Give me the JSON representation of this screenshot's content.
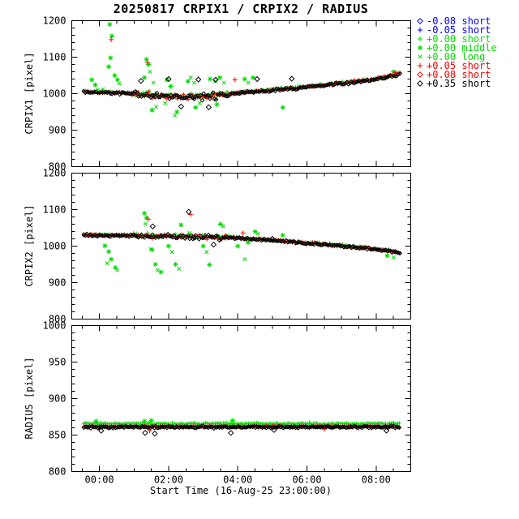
{
  "title": "20250817 CRPIX1 / CRPIX2 / RADIUS",
  "xlabel": "Start Time (16-Aug-25 23:00:00)",
  "colors": {
    "black": "#000000",
    "blue": "#0000ff",
    "green": "#00dd00",
    "red": "#ff0000"
  },
  "x_axis": {
    "range": [
      0.2,
      10.0
    ],
    "unit": "hours since 23:00",
    "major_ticks": [
      {
        "value": 1,
        "label": "00:00"
      },
      {
        "value": 3,
        "label": "02:00"
      },
      {
        "value": 5,
        "label": "04:00"
      },
      {
        "value": 7,
        "label": "06:00"
      },
      {
        "value": 9,
        "label": "08:00"
      }
    ],
    "minor_step": 0.5
  },
  "legend": [
    {
      "symbol": "diamond",
      "color": "blue",
      "label": "-0.08 short"
    },
    {
      "symbol": "plus",
      "color": "blue",
      "label": "-0.05 short"
    },
    {
      "symbol": "plus",
      "color": "green",
      "label": "+0.00 short"
    },
    {
      "symbol": "asterisk",
      "color": "green",
      "label": "+0.00 middle"
    },
    {
      "symbol": "x",
      "color": "green",
      "label": "+0.00 long"
    },
    {
      "symbol": "plus",
      "color": "red",
      "label": "+0.05 short"
    },
    {
      "symbol": "diamond",
      "color": "red",
      "label": "+0.08 short"
    },
    {
      "symbol": "diamond",
      "color": "black",
      "label": "+0.35 short"
    }
  ],
  "chart_data": [
    {
      "type": "scatter",
      "ylabel": "CRPIX1 [pixel]",
      "ylim": [
        800,
        1200
      ],
      "ymajor": [
        800,
        900,
        1000,
        1100,
        1200
      ],
      "yminor_step": 20,
      "band": {
        "x_from": 0.55,
        "x_to": 9.7,
        "step": 0.045,
        "jitter": 3.5,
        "noisy": [
          {
            "from": 1.9,
            "to": 4.7,
            "factor": 2.3
          }
        ],
        "trend": [
          [
            0.55,
            1005
          ],
          [
            1.2,
            1003
          ],
          [
            1.8,
            1000
          ],
          [
            2.4,
            996
          ],
          [
            3.0,
            992
          ],
          [
            3.6,
            990
          ],
          [
            4.2,
            992
          ],
          [
            4.7,
            996
          ],
          [
            5.0,
            1001
          ],
          [
            5.5,
            1005
          ],
          [
            6.0,
            1009
          ],
          [
            6.5,
            1013
          ],
          [
            7.0,
            1018
          ],
          [
            7.5,
            1023
          ],
          [
            8.0,
            1028
          ],
          [
            8.5,
            1033
          ],
          [
            9.0,
            1040
          ],
          [
            9.3,
            1045
          ],
          [
            9.55,
            1051
          ],
          [
            9.7,
            1056
          ]
        ],
        "series": [
          {
            "color": "green",
            "symbol": "plus",
            "offset": 2,
            "size": 2.5
          },
          {
            "color": "red",
            "symbol": "plus",
            "offset": 0.8,
            "size": 2.3
          },
          {
            "color": "black",
            "symbol": "diamond",
            "offset": 0,
            "size": 2.2
          }
        ]
      },
      "outliers": [
        {
          "color": "green",
          "symbol": "asterisk",
          "points": [
            [
              0.78,
              1038
            ],
            [
              0.88,
              1024
            ],
            [
              1.3,
              1190
            ],
            [
              1.36,
              1158
            ],
            [
              1.32,
              1098
            ],
            [
              1.27,
              1074
            ],
            [
              1.44,
              1050
            ],
            [
              1.52,
              1038
            ],
            [
              2.36,
              1094
            ],
            [
              2.42,
              1080
            ],
            [
              2.3,
              1044
            ],
            [
              2.52,
              955
            ],
            [
              2.95,
              1038
            ],
            [
              3.06,
              1020
            ],
            [
              3.24,
              950
            ],
            [
              3.56,
              1034
            ],
            [
              3.78,
              962
            ],
            [
              4.2,
              1040
            ],
            [
              4.48,
              1044
            ],
            [
              4.4,
              970
            ],
            [
              5.2,
              1040
            ],
            [
              5.44,
              1044
            ],
            [
              6.3,
              962
            ],
            [
              9.5,
              1060
            ]
          ]
        },
        {
          "color": "green",
          "symbol": "x",
          "points": [
            [
              0.95,
              1010
            ],
            [
              1.1,
              1012
            ],
            [
              1.57,
              1028
            ],
            [
              2.46,
              1060
            ],
            [
              2.56,
              1030
            ],
            [
              2.64,
              964
            ],
            [
              2.9,
              974
            ],
            [
              3.18,
              940
            ],
            [
              3.64,
              1044
            ],
            [
              3.74,
              1030
            ],
            [
              3.9,
              974
            ],
            [
              4.34,
              1034
            ],
            [
              4.6,
              1030
            ],
            [
              5.3,
              1030
            ]
          ]
        },
        {
          "color": "red",
          "symbol": "plus",
          "points": [
            [
              2.39,
              1085
            ],
            [
              1.34,
              1148
            ],
            [
              4.92,
              1038
            ],
            [
              9.55,
              1058
            ]
          ]
        },
        {
          "color": "black",
          "symbol": "diamond",
          "points": [
            [
              2.2,
              1035
            ],
            [
              3.0,
              1040
            ],
            [
              3.86,
              1039
            ],
            [
              4.36,
              1038
            ],
            [
              5.56,
              1040
            ],
            [
              6.56,
              1041
            ],
            [
              3.36,
              965
            ],
            [
              4.16,
              963
            ]
          ]
        }
      ]
    },
    {
      "type": "scatter",
      "ylabel": "CRPIX2 [pixel]",
      "ylim": [
        800,
        1200
      ],
      "ymajor": [
        800,
        900,
        1000,
        1100,
        1200
      ],
      "yminor_step": 20,
      "band": {
        "x_from": 0.55,
        "x_to": 9.7,
        "step": 0.045,
        "jitter": 3.2,
        "noisy": [
          {
            "from": 1.9,
            "to": 4.7,
            "factor": 1.9
          }
        ],
        "trend": [
          [
            0.55,
            1030
          ],
          [
            1.5,
            1029
          ],
          [
            2.5,
            1027
          ],
          [
            3.5,
            1026
          ],
          [
            4.5,
            1024
          ],
          [
            5.0,
            1022
          ],
          [
            5.5,
            1019
          ],
          [
            6.0,
            1016
          ],
          [
            6.5,
            1012
          ],
          [
            7.0,
            1008
          ],
          [
            7.5,
            1004
          ],
          [
            8.0,
            1000
          ],
          [
            8.5,
            996
          ],
          [
            9.0,
            991
          ],
          [
            9.3,
            988
          ],
          [
            9.55,
            984
          ],
          [
            9.7,
            981
          ]
        ],
        "series": [
          {
            "color": "green",
            "symbol": "plus",
            "offset": 1.5,
            "size": 2.5
          },
          {
            "color": "red",
            "symbol": "plus",
            "offset": 0.8,
            "size": 2.3
          },
          {
            "color": "black",
            "symbol": "diamond",
            "offset": 0,
            "size": 2.2
          }
        ]
      },
      "outliers": [
        {
          "color": "green",
          "symbol": "asterisk",
          "points": [
            [
              1.16,
              1001
            ],
            [
              1.27,
              985
            ],
            [
              1.46,
              941
            ],
            [
              1.34,
              964
            ],
            [
              2.3,
              1090
            ],
            [
              2.36,
              1078
            ],
            [
              2.52,
              990
            ],
            [
              2.62,
              950
            ],
            [
              2.78,
              929
            ],
            [
              3.0,
              1000
            ],
            [
              3.2,
              950
            ],
            [
              3.36,
              1058
            ],
            [
              4.0,
              1000
            ],
            [
              4.18,
              949
            ],
            [
              4.5,
              1060
            ],
            [
              5.0,
              1000
            ],
            [
              5.3,
              1010
            ],
            [
              5.5,
              1040
            ],
            [
              6.3,
              1030
            ],
            [
              9.32,
              974
            ]
          ]
        },
        {
          "color": "green",
          "symbol": "x",
          "points": [
            [
              1.22,
              953
            ],
            [
              1.52,
              934
            ],
            [
              2.33,
              1061
            ],
            [
              2.48,
              992
            ],
            [
              2.68,
              934
            ],
            [
              3.1,
              984
            ],
            [
              3.3,
              938
            ],
            [
              3.6,
              1036
            ],
            [
              4.1,
              984
            ],
            [
              4.58,
              1054
            ],
            [
              5.2,
              964
            ],
            [
              5.58,
              1034
            ],
            [
              9.5,
              969
            ]
          ]
        },
        {
          "color": "red",
          "symbol": "plus",
          "points": [
            [
              3.63,
              1087
            ],
            [
              2.41,
              1074
            ],
            [
              5.15,
              1036
            ]
          ]
        },
        {
          "color": "black",
          "symbol": "diamond",
          "points": [
            [
              3.58,
              1094
            ],
            [
              2.54,
              1054
            ],
            [
              4.3,
              1004
            ],
            [
              6.0,
              1020
            ]
          ]
        }
      ]
    },
    {
      "type": "scatter",
      "ylabel": "RADIUS [pixel]",
      "ylim": [
        800,
        1000
      ],
      "ymajor": [
        800,
        850,
        900,
        950,
        1000
      ],
      "yminor_step": 10,
      "band": {
        "x_from": 0.55,
        "x_to": 9.7,
        "step": 0.04,
        "jitter": 1.4,
        "noisy": [],
        "trend": [
          [
            0.55,
            861
          ],
          [
            9.7,
            861
          ]
        ],
        "series": [
          {
            "color": "green",
            "symbol": "plus",
            "offset": 4.5,
            "size": 2.5
          },
          {
            "color": "red",
            "symbol": "plus",
            "offset": 1,
            "size": 2.2
          },
          {
            "color": "black",
            "symbol": "diamond",
            "offset": 0,
            "size": 2.2
          }
        ]
      },
      "outliers": [
        {
          "color": "green",
          "symbol": "asterisk",
          "points": [
            [
              0.9,
              869
            ],
            [
              2.3,
              869
            ],
            [
              2.5,
              870
            ],
            [
              4.85,
              870
            ]
          ]
        },
        {
          "color": "red",
          "symbol": "plus",
          "points": [
            [
              2.45,
              856
            ],
            [
              7.5,
              858
            ]
          ]
        },
        {
          "color": "black",
          "symbol": "diamond",
          "points": [
            [
              1.05,
              856
            ],
            [
              2.32,
              853
            ],
            [
              2.6,
              852
            ],
            [
              4.8,
              853
            ],
            [
              6.05,
              857
            ],
            [
              9.3,
              856
            ]
          ]
        }
      ]
    }
  ]
}
